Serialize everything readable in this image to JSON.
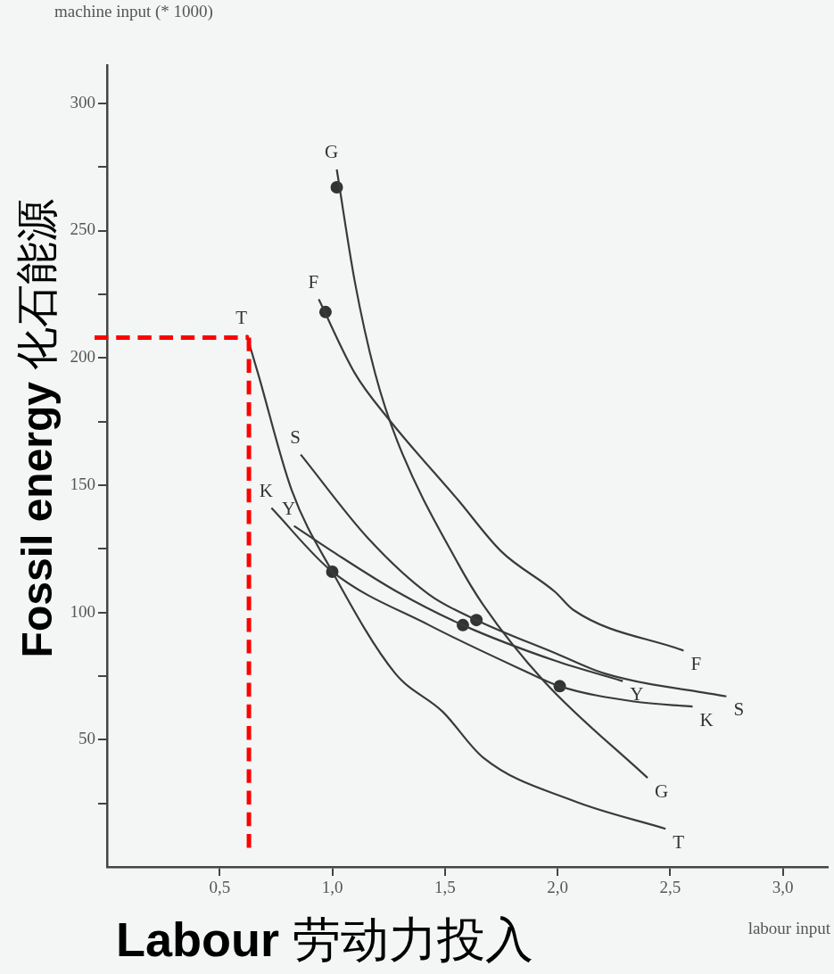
{
  "chart_data": {
    "type": "line",
    "xlabel": "Labour 劳动力投入",
    "ylabel": "Fossil energy 化石能源",
    "annotations": [
      "machine input (* 1000)",
      "labour input"
    ],
    "xlim": [
      0,
      3.2
    ],
    "ylim": [
      0,
      315
    ],
    "xticks": [
      {
        "value": 0.5,
        "label": "0,5"
      },
      {
        "value": 1,
        "label": "1,0"
      },
      {
        "value": 1.5,
        "label": "1,5"
      },
      {
        "value": 2,
        "label": "2,0"
      },
      {
        "value": 2.5,
        "label": "2,5"
      },
      {
        "value": 3,
        "label": "3,0"
      }
    ],
    "yticks": [
      {
        "value": 25,
        "label": null
      },
      50,
      {
        "value": 75,
        "label": null
      },
      100,
      {
        "value": 125,
        "label": null
      },
      150,
      {
        "value": 175,
        "label": null
      },
      200,
      {
        "value": 225,
        "label": null
      },
      250,
      {
        "value": 275,
        "label": null
      },
      300
    ],
    "grid": false,
    "legend": false,
    "line_style": "solid",
    "series": [
      {
        "name": "G",
        "color": "#3a3a3a",
        "x": [
          1.02,
          1.1,
          1.19,
          1.29,
          1.56,
          1.67,
          1.94,
          2.4
        ],
        "values": [
          274,
          230,
          194,
          167,
          119,
          103,
          73,
          35
        ]
      },
      {
        "name": "F",
        "color": "#3a3a3a",
        "x": [
          0.94,
          1.1,
          1.25,
          1.56,
          1.75,
          1.99,
          2.07,
          2.56
        ],
        "values": [
          223,
          194,
          176,
          144,
          124,
          108,
          101,
          85
        ]
      },
      {
        "name": "T",
        "color": "#3a3a3a",
        "x": [
          0.62,
          0.67,
          0.82,
          1.0,
          1.28,
          1.49,
          1.67,
          2.07,
          2.48
        ],
        "values": [
          209,
          194,
          148,
          116,
          76,
          61,
          43,
          26,
          15
        ]
      },
      {
        "name": "S",
        "color": "#3a3a3a",
        "x": [
          0.86,
          1.16,
          1.43,
          1.64,
          1.99,
          2.21,
          2.75
        ],
        "values": [
          162,
          129,
          107,
          97,
          84,
          76,
          67
        ]
      },
      {
        "name": "Y",
        "color": "#3a3a3a",
        "x": [
          0.83,
          1.0,
          1.29,
          1.58,
          1.99,
          2.29
        ],
        "values": [
          134,
          124,
          108,
          95,
          81,
          73
        ]
      },
      {
        "name": "K",
        "color": "#3a3a3a",
        "x": [
          0.73,
          1.0,
          1.43,
          1.83,
          2.01,
          2.34,
          2.6
        ],
        "values": [
          141,
          116,
          95,
          78,
          71,
          65,
          63
        ]
      },
      {
        "type": "scatter",
        "marker": "circle",
        "color": "#333333",
        "x": [
          1.02,
          0.97,
          1.0,
          1.58,
          1.64,
          2.01
        ],
        "values": [
          267,
          218,
          116,
          95,
          97,
          71
        ]
      }
    ],
    "ref_lines": [
      {
        "axis": "y",
        "value": 208,
        "color": "#ff0000",
        "line_style": "dashed"
      },
      {
        "axis": "x",
        "value": 0.63,
        "color": "#ff0000",
        "line_style": "dashed"
      }
    ]
  }
}
